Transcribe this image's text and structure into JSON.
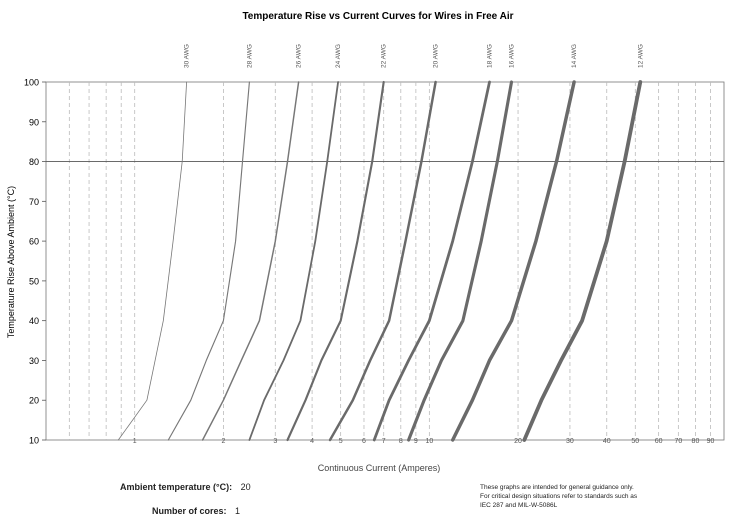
{
  "chart_data": {
    "type": "line",
    "title": "Temperature Rise vs Current Curves for Wires in Free Air",
    "xlabel": "Continuous Current (Amperes)",
    "ylabel": "Temperature Rise Above Ambient (°C)",
    "x_scale": "log",
    "xlim": [
      0.5,
      100
    ],
    "ylim": [
      10,
      100
    ],
    "y_ticks": [
      10,
      20,
      30,
      40,
      50,
      60,
      70,
      80,
      90,
      100
    ],
    "x_ticks": [
      0.6,
      0.7,
      0.8,
      0.9,
      1,
      2,
      3,
      4,
      5,
      6,
      7,
      8,
      9,
      10,
      20,
      30,
      40,
      50,
      60,
      70,
      80,
      90
    ],
    "x_tick_labels": [
      "",
      "",
      "",
      "",
      "1",
      "2",
      "3",
      "4",
      "5",
      "6",
      "7",
      "8",
      "9",
      "10",
      "20",
      "30",
      "40",
      "50",
      "60",
      "70",
      "80",
      "90"
    ],
    "y_reference_line": 80,
    "grid": "vertical-dashed",
    "legend": "curve labels at top",
    "series": [
      {
        "name": "30 AWG",
        "x": [
          0.88,
          1.1,
          1.25,
          1.35,
          1.45,
          1.5
        ],
        "y": [
          10,
          20,
          40,
          60,
          80,
          100
        ]
      },
      {
        "name": "28 AWG",
        "x": [
          1.3,
          1.55,
          1.75,
          2.0,
          2.2,
          2.45
        ],
        "y": [
          10,
          20,
          30,
          40,
          60,
          100
        ]
      },
      {
        "name": "26 AWG",
        "x": [
          1.7,
          2.0,
          2.3,
          2.65,
          3.0,
          3.3,
          3.6
        ],
        "y": [
          10,
          20,
          30,
          40,
          60,
          80,
          100
        ]
      },
      {
        "name": "24 AWG",
        "x": [
          2.45,
          2.75,
          3.2,
          3.65,
          4.1,
          4.5,
          4.9
        ],
        "y": [
          10,
          20,
          30,
          40,
          60,
          80,
          100
        ]
      },
      {
        "name": "22 AWG",
        "x": [
          3.3,
          3.8,
          4.3,
          5.0,
          5.7,
          6.4,
          7.0
        ],
        "y": [
          10,
          20,
          30,
          40,
          60,
          80,
          100
        ]
      },
      {
        "name": "20 AWG",
        "x": [
          4.6,
          5.5,
          6.3,
          7.3,
          8.3,
          9.4,
          10.5
        ],
        "y": [
          10,
          20,
          30,
          40,
          60,
          80,
          100
        ]
      },
      {
        "name": "18 AWG",
        "x": [
          6.5,
          7.3,
          8.5,
          10,
          12,
          14,
          16
        ],
        "y": [
          10,
          20,
          30,
          40,
          60,
          80,
          100
        ]
      },
      {
        "name": "16 AWG",
        "x": [
          8.5,
          9.6,
          11,
          13,
          15,
          17,
          19
        ],
        "y": [
          10,
          20,
          30,
          40,
          60,
          80,
          100
        ]
      },
      {
        "name": "14 AWG",
        "x": [
          12,
          14,
          16,
          19,
          23,
          27,
          31
        ],
        "y": [
          10,
          20,
          30,
          40,
          60,
          80,
          100
        ]
      },
      {
        "name": "12 AWG",
        "x": [
          21,
          24,
          28,
          33,
          40,
          46,
          52
        ],
        "y": [
          10,
          20,
          30,
          40,
          60,
          80,
          100
        ]
      }
    ]
  },
  "info": {
    "ambient_label": "Ambient temperature (°C):",
    "ambient_value": "20",
    "cores_label": "Number of cores:",
    "cores_value": "1"
  },
  "note": [
    "These graphs are intended for general guidance only.",
    "For critical design situations refer to standards such as",
    "IEC 287 and MIL-W-5086L"
  ]
}
